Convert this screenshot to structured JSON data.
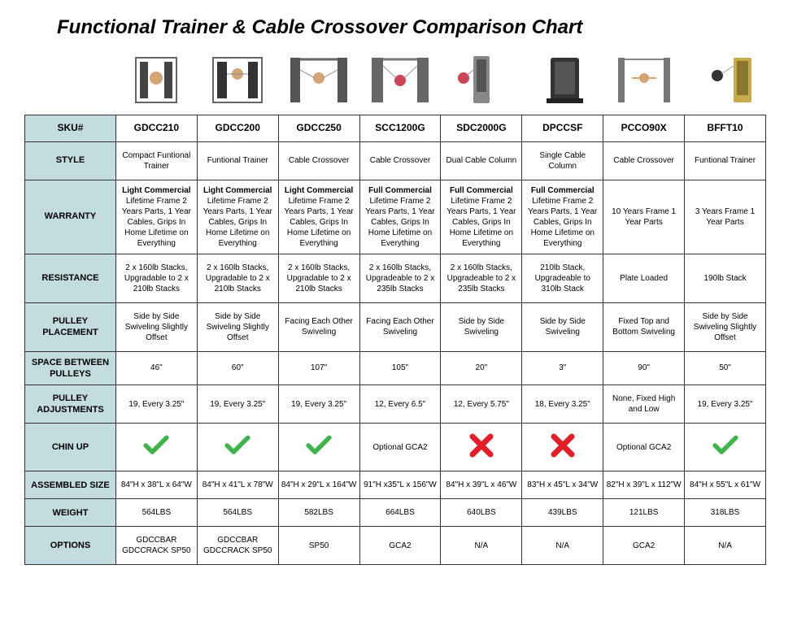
{
  "title": "Functional Trainer & Cable Crossover Comparison Chart",
  "colors": {
    "header_bg": "#c3dce0",
    "border": "#333333",
    "check": "#3fb44a",
    "x": "#e41e26",
    "text": "#000000"
  },
  "row_labels": {
    "sku": "SKU#",
    "style": "STYLE",
    "warranty": "WARRANTY",
    "resistance": "RESISTANCE",
    "pulley_placement": "PULLEY PLACEMENT",
    "space": "SPACE BETWEEN PULLEYS",
    "adjustments": "PULLEY ADJUSTMENTS",
    "chinup": "CHIN UP",
    "size": "ASSEMBLED SIZE",
    "weight": "WEIGHT",
    "options": "OPTIONS"
  },
  "products": [
    {
      "sku": "GDCC210",
      "style": "Compact Funtional Trainer",
      "warranty_head": "Light Commercial",
      "warranty_body": "Lifetime Frame 2 Years Parts, 1 Year Cables, Grips In Home Lifetime on Everything",
      "resistance": "2 x 160lb Stacks, Upgradable to 2 x 210lb Stacks",
      "pulley_placement": "Side by Side Swiveling Slightly Offset",
      "space": "46\"",
      "adjustments": "19, Every 3.25\"",
      "chinup": "check",
      "size": "84\"H x 38\"L x 64\"W",
      "weight": "564LBS",
      "options": "GDCCBAR GDCCRACK SP50"
    },
    {
      "sku": "GDCC200",
      "style": "Funtional Trainer",
      "warranty_head": "Light Commercial",
      "warranty_body": "Lifetime Frame 2 Years Parts, 1 Year Cables, Grips In Home Lifetime on Everything",
      "resistance": "2 x 160lb Stacks, Upgradable to 2 x 210lb Stacks",
      "pulley_placement": "Side by Side Swiveling Slightly Offset",
      "space": "60\"",
      "adjustments": "19, Every 3.25\"",
      "chinup": "check",
      "size": "84\"H x 41\"L x 78\"W",
      "weight": "564LBS",
      "options": "GDCCBAR GDCCRACK SP50"
    },
    {
      "sku": "GDCC250",
      "style": "Cable Crossover",
      "warranty_head": "Light Commercial",
      "warranty_body": "Lifetime Frame 2 Years Parts, 1 Year Cables, Grips In Home Lifetime on Everything",
      "resistance": "2 x 160lb Stacks, Upgradable to 2 x 210lb Stacks",
      "pulley_placement": "Facing Each Other Swiveling",
      "space": "107\"",
      "adjustments": "19, Every 3.25\"",
      "chinup": "check",
      "size": "84\"H x 29\"L x 164\"W",
      "weight": "582LBS",
      "options": "SP50"
    },
    {
      "sku": "SCC1200G",
      "style": "Cable Crossover",
      "warranty_head": "Full Commercial",
      "warranty_body": "Lifetime Frame 2 Years Parts, 1 Year Cables, Grips In Home Lifetime on Everything",
      "resistance": "2 x 160lb Stacks, Upgradeable to 2 x 235lb Stacks",
      "pulley_placement": "Facing Each Other Swiveling",
      "space": "105\"",
      "adjustments": "12, Every 6.5\"",
      "chinup": "Optional GCA2",
      "size": "91\"H x35\"L x 156\"W",
      "weight": "664LBS",
      "options": "GCA2"
    },
    {
      "sku": "SDC2000G",
      "style": "Dual Cable Column",
      "warranty_head": "Full Commercial",
      "warranty_body": "Lifetime Frame 2 Years Parts, 1 Year Cables, Grips In Home Lifetime on Everything",
      "resistance": "2 x 160lb Stacks, Upgradeable to 2 x 235lb Stacks",
      "pulley_placement": "Side by Side Swiveling",
      "space": "20\"",
      "adjustments": "12, Every 5.75\"",
      "chinup": "x",
      "size": "84\"H x 39\"L x 46\"W",
      "weight": "640LBS",
      "options": "N/A"
    },
    {
      "sku": "DPCCSF",
      "style": "Single Cable Column",
      "warranty_head": "Full Commercial",
      "warranty_body": "Lifetime Frame 2 Years Parts, 1 Year Cables, Grips In Home Lifetime on Everything",
      "resistance": "210lb Stack, Upgradeable to 310lb Stack",
      "pulley_placement": "Side by Side Swiveling",
      "space": "3\"",
      "adjustments": "18, Every 3.25\"",
      "chinup": "x",
      "size": "83\"H x 45\"L x 34\"W",
      "weight": "439LBS",
      "options": "N/A"
    },
    {
      "sku": "PCCO90X",
      "style": "Cable Crossover",
      "warranty_head": "",
      "warranty_body": "10 Years Frame 1 Year Parts",
      "resistance": "Plate Loaded",
      "pulley_placement": "Fixed Top and Bottom Swiveling",
      "space": "90\"",
      "adjustments": "None, Fixed High and Low",
      "chinup": "Optional GCA2",
      "size": "82\"H x 39\"L x 112\"W",
      "weight": "121LBS",
      "options": "GCA2"
    },
    {
      "sku": "BFFT10",
      "style": "Funtional Trainer",
      "warranty_head": "",
      "warranty_body": "3 Years Frame 1 Year Parts",
      "resistance": "190lb Stack",
      "pulley_placement": "Side by Side Swiveling Slightly Offset",
      "space": "50\"",
      "adjustments": "19, Every 3.25\"",
      "chinup": "check",
      "size": "84\"H x 55\"L x 61\"W",
      "weight": "318LBS",
      "options": "N/A"
    }
  ]
}
